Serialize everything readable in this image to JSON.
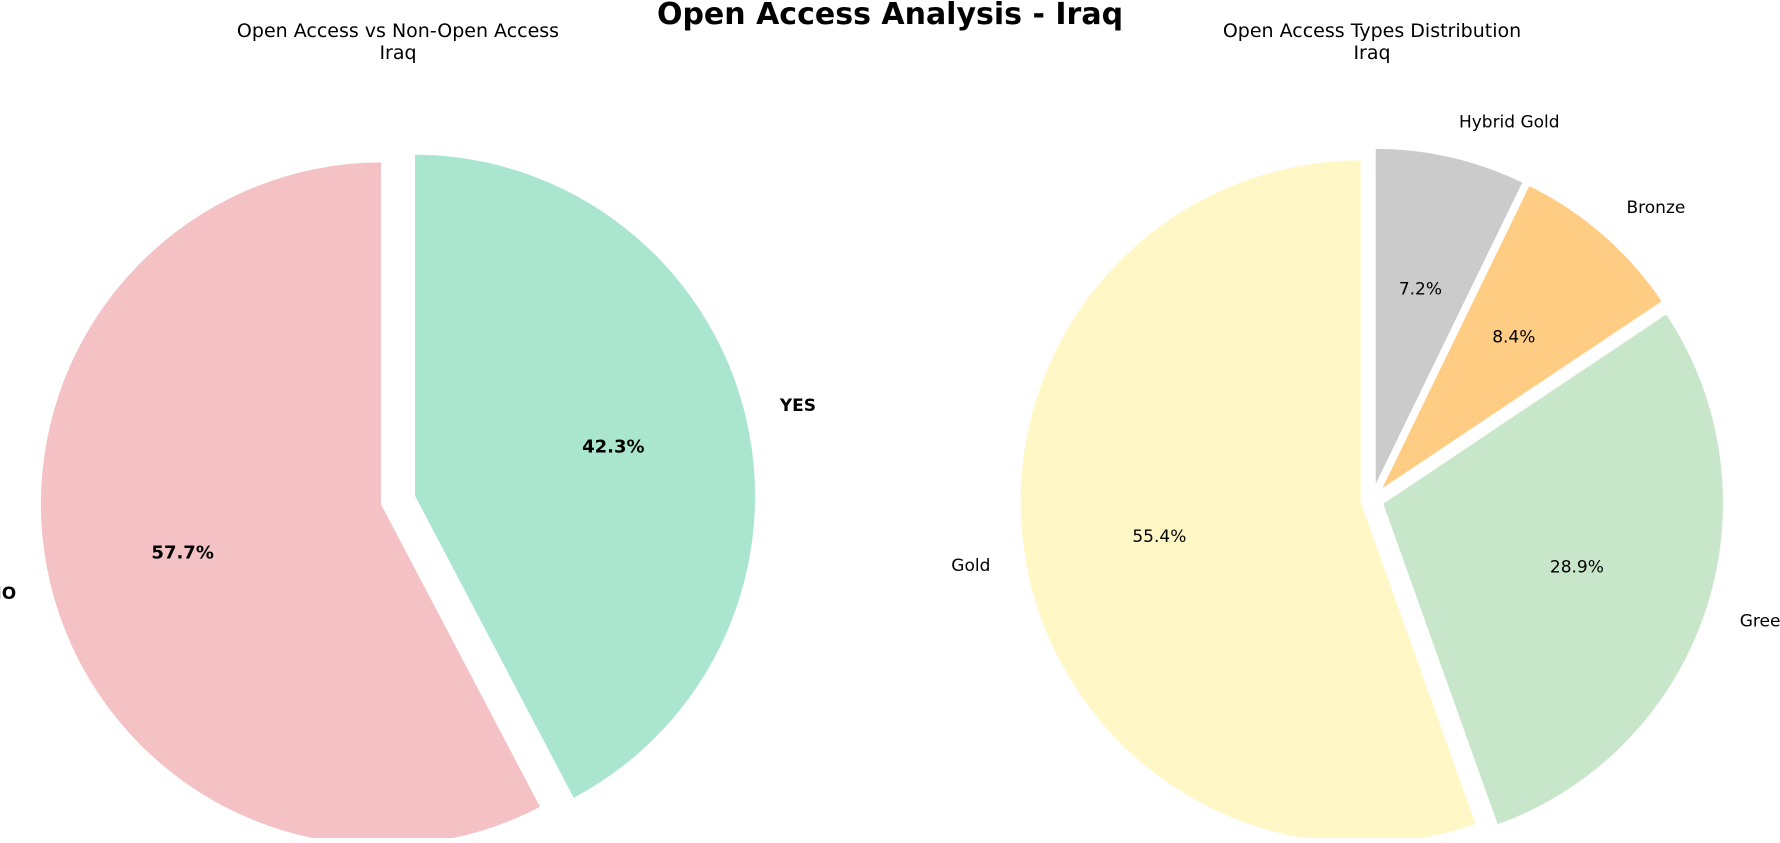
{
  "chart_data": {
    "title": "Open Access Analysis - Iraq",
    "charts": [
      {
        "type": "pie",
        "title_line1": "Open Access vs Non-Open Access",
        "title_line2": "Iraq",
        "bold_labels": true,
        "start_angle_deg": 90,
        "direction": "clockwise",
        "slices": [
          {
            "label": "YES",
            "value": 42.3,
            "pct_label": "42.3%",
            "color": "#aae6cf"
          },
          {
            "label": "NO",
            "value": 57.7,
            "pct_label": "57.7%",
            "color": "#f4c2c4"
          }
        ]
      },
      {
        "type": "pie",
        "title_line1": "Open Access Types Distribution",
        "title_line2": "Iraq",
        "bold_labels": false,
        "start_angle_deg": 90,
        "direction": "clockwise",
        "slices": [
          {
            "label": "Hybrid Gold",
            "value": 7.2,
            "pct_label": "7.2%",
            "color": "#cbcbcb"
          },
          {
            "label": "Bronze",
            "value": 8.4,
            "pct_label": "8.4%",
            "color": "#ffcc84"
          },
          {
            "label": "Green",
            "value": 28.9,
            "pct_label": "28.9%",
            "color": "#c8e6c9"
          },
          {
            "label": "Gold",
            "value": 55.4,
            "pct_label": "55.4%",
            "color": "#fff8c6"
          }
        ]
      }
    ]
  }
}
